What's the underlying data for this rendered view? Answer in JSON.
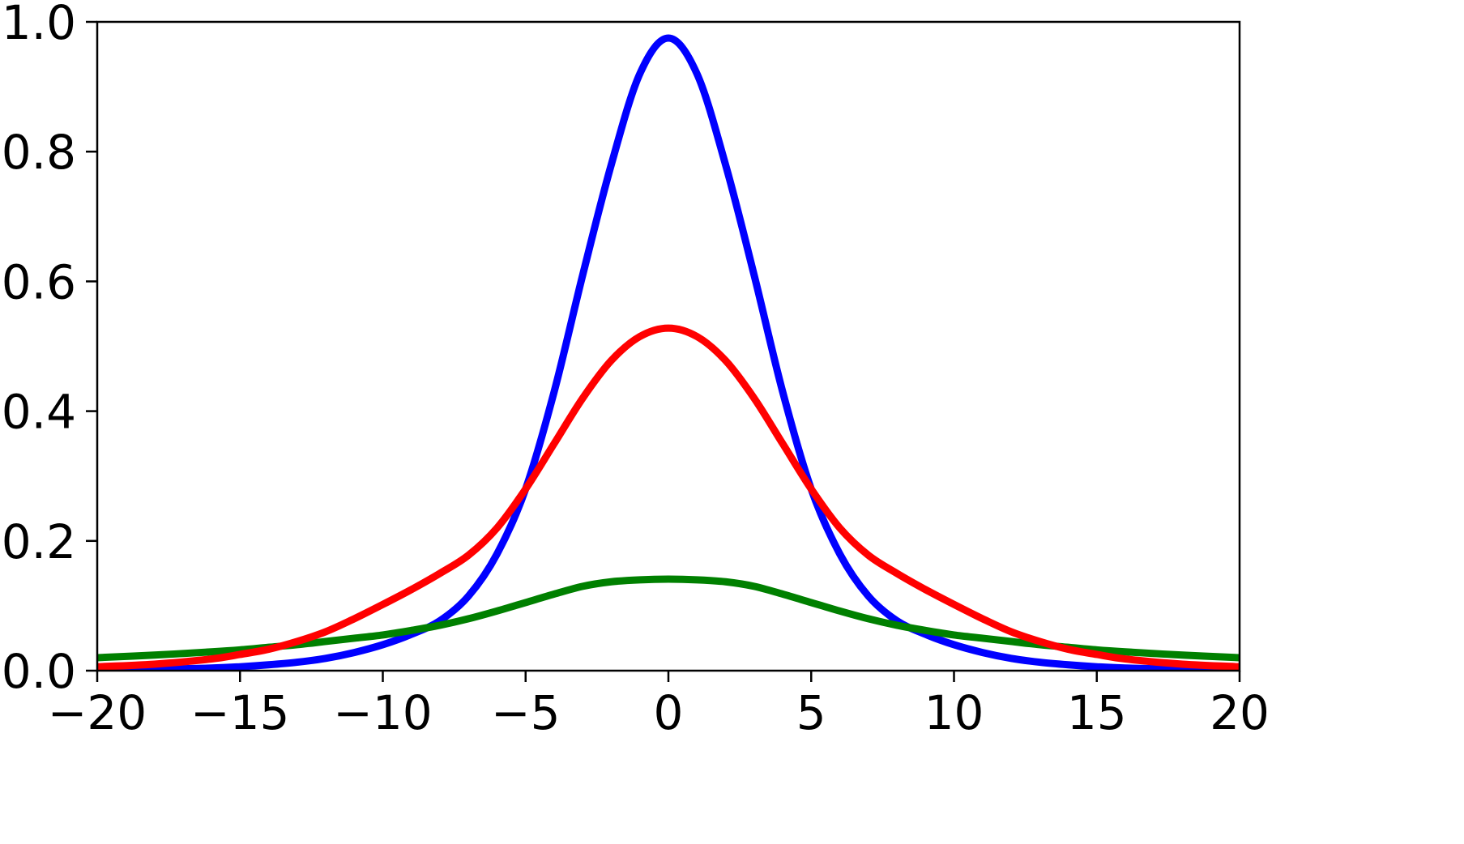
{
  "chart_data": {
    "type": "line",
    "title": "",
    "xlabel": "",
    "ylabel": "",
    "xlim": [
      -20,
      20
    ],
    "ylim": [
      0,
      1.0
    ],
    "x_ticks": [
      {
        "value": -20,
        "label": "−20"
      },
      {
        "value": -15,
        "label": "−15"
      },
      {
        "value": -10,
        "label": "−10"
      },
      {
        "value": -5,
        "label": "−5"
      },
      {
        "value": 0,
        "label": "0"
      },
      {
        "value": 5,
        "label": "5"
      },
      {
        "value": 10,
        "label": "10"
      },
      {
        "value": 15,
        "label": "15"
      },
      {
        "value": 20,
        "label": "20"
      }
    ],
    "y_ticks": [
      {
        "value": 0.0,
        "label": "0.0"
      },
      {
        "value": 0.2,
        "label": "0.2"
      },
      {
        "value": 0.4,
        "label": "0.4"
      },
      {
        "value": 0.6,
        "label": "0.6"
      },
      {
        "value": 0.8,
        "label": "0.8"
      },
      {
        "value": 1.0,
        "label": "1.0"
      }
    ],
    "grid": false,
    "legend": "none",
    "x": [
      -20,
      -18,
      -16,
      -15,
      -14,
      -13,
      -12,
      -11,
      -10,
      -9,
      -8,
      -7,
      -6,
      -5,
      -4,
      -3,
      -2,
      -1,
      0,
      1,
      2,
      3,
      4,
      5,
      6,
      7,
      8,
      9,
      10,
      11,
      12,
      13,
      14,
      15,
      16,
      18,
      20
    ],
    "series": [
      {
        "color": "#0000ff",
        "values": [
          0.001,
          0.002,
          0.004,
          0.006,
          0.009,
          0.013,
          0.019,
          0.028,
          0.04,
          0.056,
          0.077,
          0.115,
          0.18,
          0.28,
          0.43,
          0.61,
          0.78,
          0.92,
          0.975,
          0.92,
          0.78,
          0.61,
          0.43,
          0.28,
          0.18,
          0.115,
          0.077,
          0.056,
          0.04,
          0.028,
          0.019,
          0.013,
          0.009,
          0.006,
          0.004,
          0.002,
          0.001
        ]
      },
      {
        "color": "#ff0000",
        "values": [
          0.006,
          0.01,
          0.018,
          0.025,
          0.033,
          0.045,
          0.06,
          0.08,
          0.102,
          0.125,
          0.15,
          0.178,
          0.22,
          0.28,
          0.35,
          0.42,
          0.478,
          0.515,
          0.528,
          0.515,
          0.478,
          0.42,
          0.35,
          0.28,
          0.22,
          0.178,
          0.15,
          0.125,
          0.102,
          0.08,
          0.06,
          0.045,
          0.033,
          0.025,
          0.018,
          0.01,
          0.006
        ]
      },
      {
        "color": "#008000",
        "values": [
          0.02,
          0.024,
          0.029,
          0.032,
          0.036,
          0.04,
          0.045,
          0.05,
          0.055,
          0.062,
          0.07,
          0.08,
          0.092,
          0.105,
          0.118,
          0.13,
          0.137,
          0.14,
          0.141,
          0.14,
          0.137,
          0.13,
          0.118,
          0.105,
          0.092,
          0.08,
          0.07,
          0.062,
          0.055,
          0.05,
          0.045,
          0.04,
          0.036,
          0.032,
          0.029,
          0.024,
          0.02
        ]
      }
    ]
  }
}
